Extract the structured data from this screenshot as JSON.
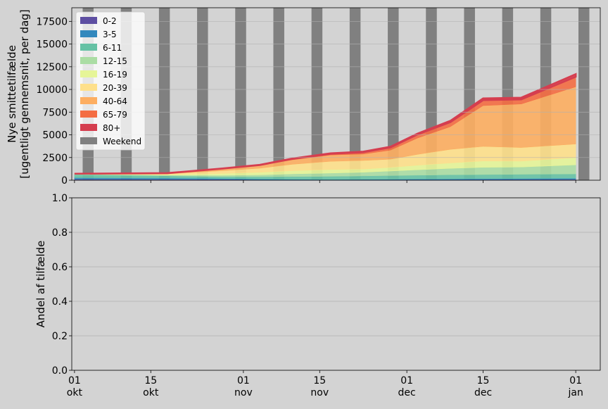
{
  "chart_data": [
    {
      "type": "area",
      "stacked": true,
      "ylabel_lines": [
        "Nye smittetilfælde",
        "[ugentligt gennemsnit, per dag]"
      ],
      "xlabel": "",
      "ylim": [
        0,
        19000
      ],
      "yticks": [
        "0",
        "2500",
        "5000",
        "7500",
        "10000",
        "12500",
        "15000",
        "17500"
      ],
      "ytick_values": [
        0,
        2500,
        5000,
        7500,
        10000,
        12500,
        15000,
        17500
      ],
      "grid": "horizontal",
      "legend_placement": "top-left",
      "x_dates": [
        "2020-10-01",
        "2020-10-18",
        "2020-10-28",
        "2020-11-04",
        "2020-11-10",
        "2020-11-17",
        "2020-11-23",
        "2020-11-28",
        "2020-12-03",
        "2020-12-09",
        "2020-12-15",
        "2020-12-22",
        "2021-01-01"
      ],
      "series": [
        {
          "name": "0-2",
          "color": "#5e4fa2",
          "values": [
            120,
            110,
            90,
            60,
            40,
            30,
            35,
            40,
            50,
            60,
            70,
            80,
            90
          ]
        },
        {
          "name": "3-5",
          "color": "#3288bd",
          "values": [
            150,
            120,
            100,
            80,
            60,
            50,
            60,
            70,
            80,
            90,
            100,
            110,
            120
          ]
        },
        {
          "name": "6-11",
          "color": "#66c2a5",
          "values": [
            350,
            250,
            200,
            250,
            300,
            350,
            380,
            400,
            420,
            450,
            450,
            460,
            480
          ]
        },
        {
          "name": "12-15",
          "color": "#abdda4",
          "values": [
            50,
            80,
            150,
            200,
            300,
            350,
            400,
            500,
            600,
            700,
            800,
            800,
            1000
          ]
        },
        {
          "name": "16-19",
          "color": "#e6f598",
          "values": [
            30,
            60,
            200,
            280,
            350,
            400,
            350,
            400,
            500,
            600,
            700,
            650,
            800
          ]
        },
        {
          "name": "20-39",
          "color": "#fee08b",
          "values": [
            10,
            80,
            300,
            450,
            700,
            900,
            950,
            900,
            1200,
            1500,
            1600,
            1500,
            1500
          ]
        },
        {
          "name": "40-64",
          "color": "#fdae61",
          "values": [
            0,
            60,
            200,
            300,
            500,
            700,
            700,
            1000,
            1800,
            2500,
            4500,
            4800,
            6300
          ]
        },
        {
          "name": "65-79",
          "color": "#f46d43",
          "values": [
            0,
            10,
            30,
            50,
            100,
            130,
            200,
            300,
            400,
            500,
            600,
            500,
            1100
          ]
        },
        {
          "name": "80+",
          "color": "#d53e4f",
          "values": [
            0,
            10,
            20,
            30,
            50,
            60,
            70,
            80,
            100,
            150,
            200,
            200,
            300
          ]
        }
      ],
      "weekend_color": "#808080",
      "weekend_label": "Weekend",
      "xticks": [
        {
          "date": "2020-10-01",
          "day": "01",
          "month": "okt"
        },
        {
          "date": "2020-10-15",
          "day": "15",
          "month": "okt"
        },
        {
          "date": "2020-11-01",
          "day": "01",
          "month": "nov"
        },
        {
          "date": "2020-11-15",
          "day": "15",
          "month": "nov"
        },
        {
          "date": "2020-12-01",
          "day": "01",
          "month": "dec"
        },
        {
          "date": "2020-12-15",
          "day": "15",
          "month": "dec"
        },
        {
          "date": "2021-01-01",
          "day": "01",
          "month": "jan"
        }
      ]
    },
    {
      "type": "area",
      "ylabel": "Andel af tilfælde",
      "ylim": [
        0,
        1.0
      ],
      "yticks": [
        "0.0",
        "0.2",
        "0.4",
        "0.6",
        "0.8",
        "1.0"
      ],
      "ytick_values": [
        0,
        0.2,
        0.4,
        0.6,
        0.8,
        1.0
      ],
      "grid": "horizontal",
      "series": [],
      "xticks": [
        {
          "date": "2020-10-01",
          "day": "01",
          "month": "okt"
        },
        {
          "date": "2020-10-15",
          "day": "15",
          "month": "okt"
        },
        {
          "date": "2020-11-01",
          "day": "01",
          "month": "nov"
        },
        {
          "date": "2020-11-15",
          "day": "15",
          "month": "nov"
        },
        {
          "date": "2020-12-01",
          "day": "01",
          "month": "dec"
        },
        {
          "date": "2020-12-15",
          "day": "15",
          "month": "dec"
        },
        {
          "date": "2021-01-01",
          "day": "01",
          "month": "jan"
        }
      ]
    }
  ]
}
